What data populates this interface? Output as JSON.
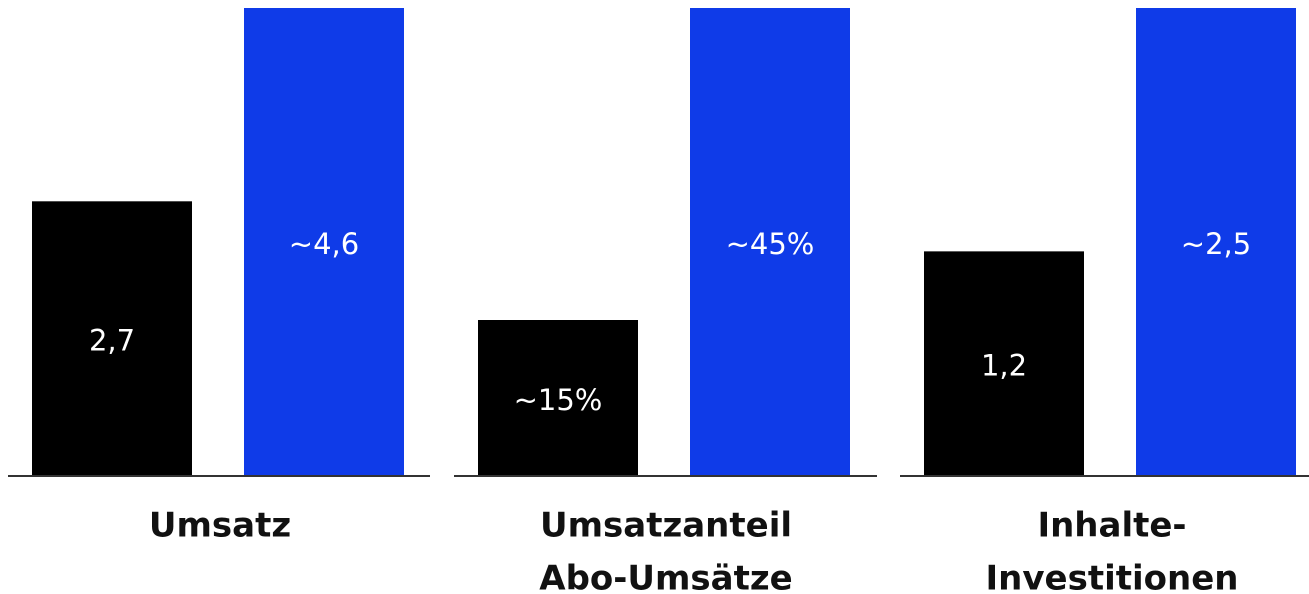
{
  "chart_data": [
    {
      "type": "bar",
      "title": [
        "Umsatz"
      ],
      "categories": [
        null,
        null
      ],
      "values": [
        2.7,
        4.6
      ],
      "value_labels": [
        "2,7",
        "~4,6"
      ],
      "colors": [
        "#000000",
        "#0f3be8"
      ],
      "ylim": [
        0,
        4.6
      ]
    },
    {
      "type": "bar",
      "title": [
        "Umsatzanteil",
        "Abo-Umsätze"
      ],
      "categories": [
        null,
        null
      ],
      "values": [
        15,
        45
      ],
      "value_labels": [
        "~15%",
        "~45%"
      ],
      "colors": [
        "#000000",
        "#0f3be8"
      ],
      "ylim": [
        0,
        45
      ]
    },
    {
      "type": "bar",
      "title": [
        "Inhalte-",
        "Investitionen"
      ],
      "categories": [
        null,
        null
      ],
      "values": [
        1.2,
        2.5
      ],
      "value_labels": [
        "1,2",
        "~2,5"
      ],
      "colors": [
        "#000000",
        "#0f3be8"
      ],
      "ylim": [
        0,
        2.5
      ]
    }
  ]
}
